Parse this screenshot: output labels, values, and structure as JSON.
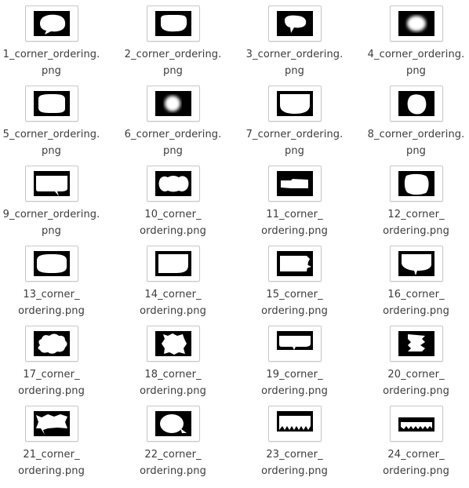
{
  "files": [
    {
      "name_line1": "1_corner_ordering.",
      "name_line2": "png",
      "thumb": "blob-bubble"
    },
    {
      "name_line1": "2_corner_ordering.",
      "name_line2": "png",
      "thumb": "blob-rounded"
    },
    {
      "name_line1": "3_corner_ordering.",
      "name_line2": "png",
      "thumb": "small-bubble-tail"
    },
    {
      "name_line1": "4_corner_ordering.",
      "name_line2": "png",
      "thumb": "blurred-blob"
    },
    {
      "name_line1": "5_corner_ordering.",
      "name_line2": "png",
      "thumb": "rounded-rect"
    },
    {
      "name_line1": "6_corner_ordering.",
      "name_line2": "png",
      "thumb": "blurred-blob-small"
    },
    {
      "name_line1": "7_corner_ordering.",
      "name_line2": "png",
      "thumb": "shield-shape"
    },
    {
      "name_line1": "8_corner_ordering.",
      "name_line2": "png",
      "thumb": "tilted-blob"
    },
    {
      "name_line1": "9_corner_ordering.",
      "name_line2": "png",
      "thumb": "wide-bubble-tail"
    },
    {
      "name_line1": "10_corner_",
      "name_line2": "ordering.png",
      "thumb": "wavy-rect"
    },
    {
      "name_line1": "11_corner_",
      "name_line2": "ordering.png",
      "thumb": "thin-bar"
    },
    {
      "name_line1": "12_corner_",
      "name_line2": "ordering.png",
      "thumb": "rounded-square"
    },
    {
      "name_line1": "13_corner_",
      "name_line2": "ordering.png",
      "thumb": "oval-rect"
    },
    {
      "name_line1": "14_corner_",
      "name_line2": "ordering.png",
      "thumb": "half-rounded"
    },
    {
      "name_line1": "15_corner_",
      "name_line2": "ordering.png",
      "thumb": "bubble-right-tail"
    },
    {
      "name_line1": "16_corner_",
      "name_line2": "ordering.png",
      "thumb": "bubble-bottom-tail"
    },
    {
      "name_line1": "17_corner_",
      "name_line2": "ordering.png",
      "thumb": "cloud"
    },
    {
      "name_line1": "18_corner_",
      "name_line2": "ordering.png",
      "thumb": "jagged-square"
    },
    {
      "name_line1": "19_corner_",
      "name_line2": "ordering.png",
      "thumb": "flat-bubble"
    },
    {
      "name_line1": "20_corner_",
      "name_line2": "ordering.png",
      "thumb": "zigzag-banner"
    },
    {
      "name_line1": "21_corner_",
      "name_line2": "ordering.png",
      "thumb": "jagged-bubble"
    },
    {
      "name_line1": "22_corner_",
      "name_line2": "ordering.png",
      "thumb": "circle-bubble"
    },
    {
      "name_line1": "23_corner_",
      "name_line2": "ordering.png",
      "thumb": "spiky-bottom"
    },
    {
      "name_line1": "24_corner_",
      "name_line2": "ordering.png",
      "thumb": "spiky-strip"
    }
  ]
}
